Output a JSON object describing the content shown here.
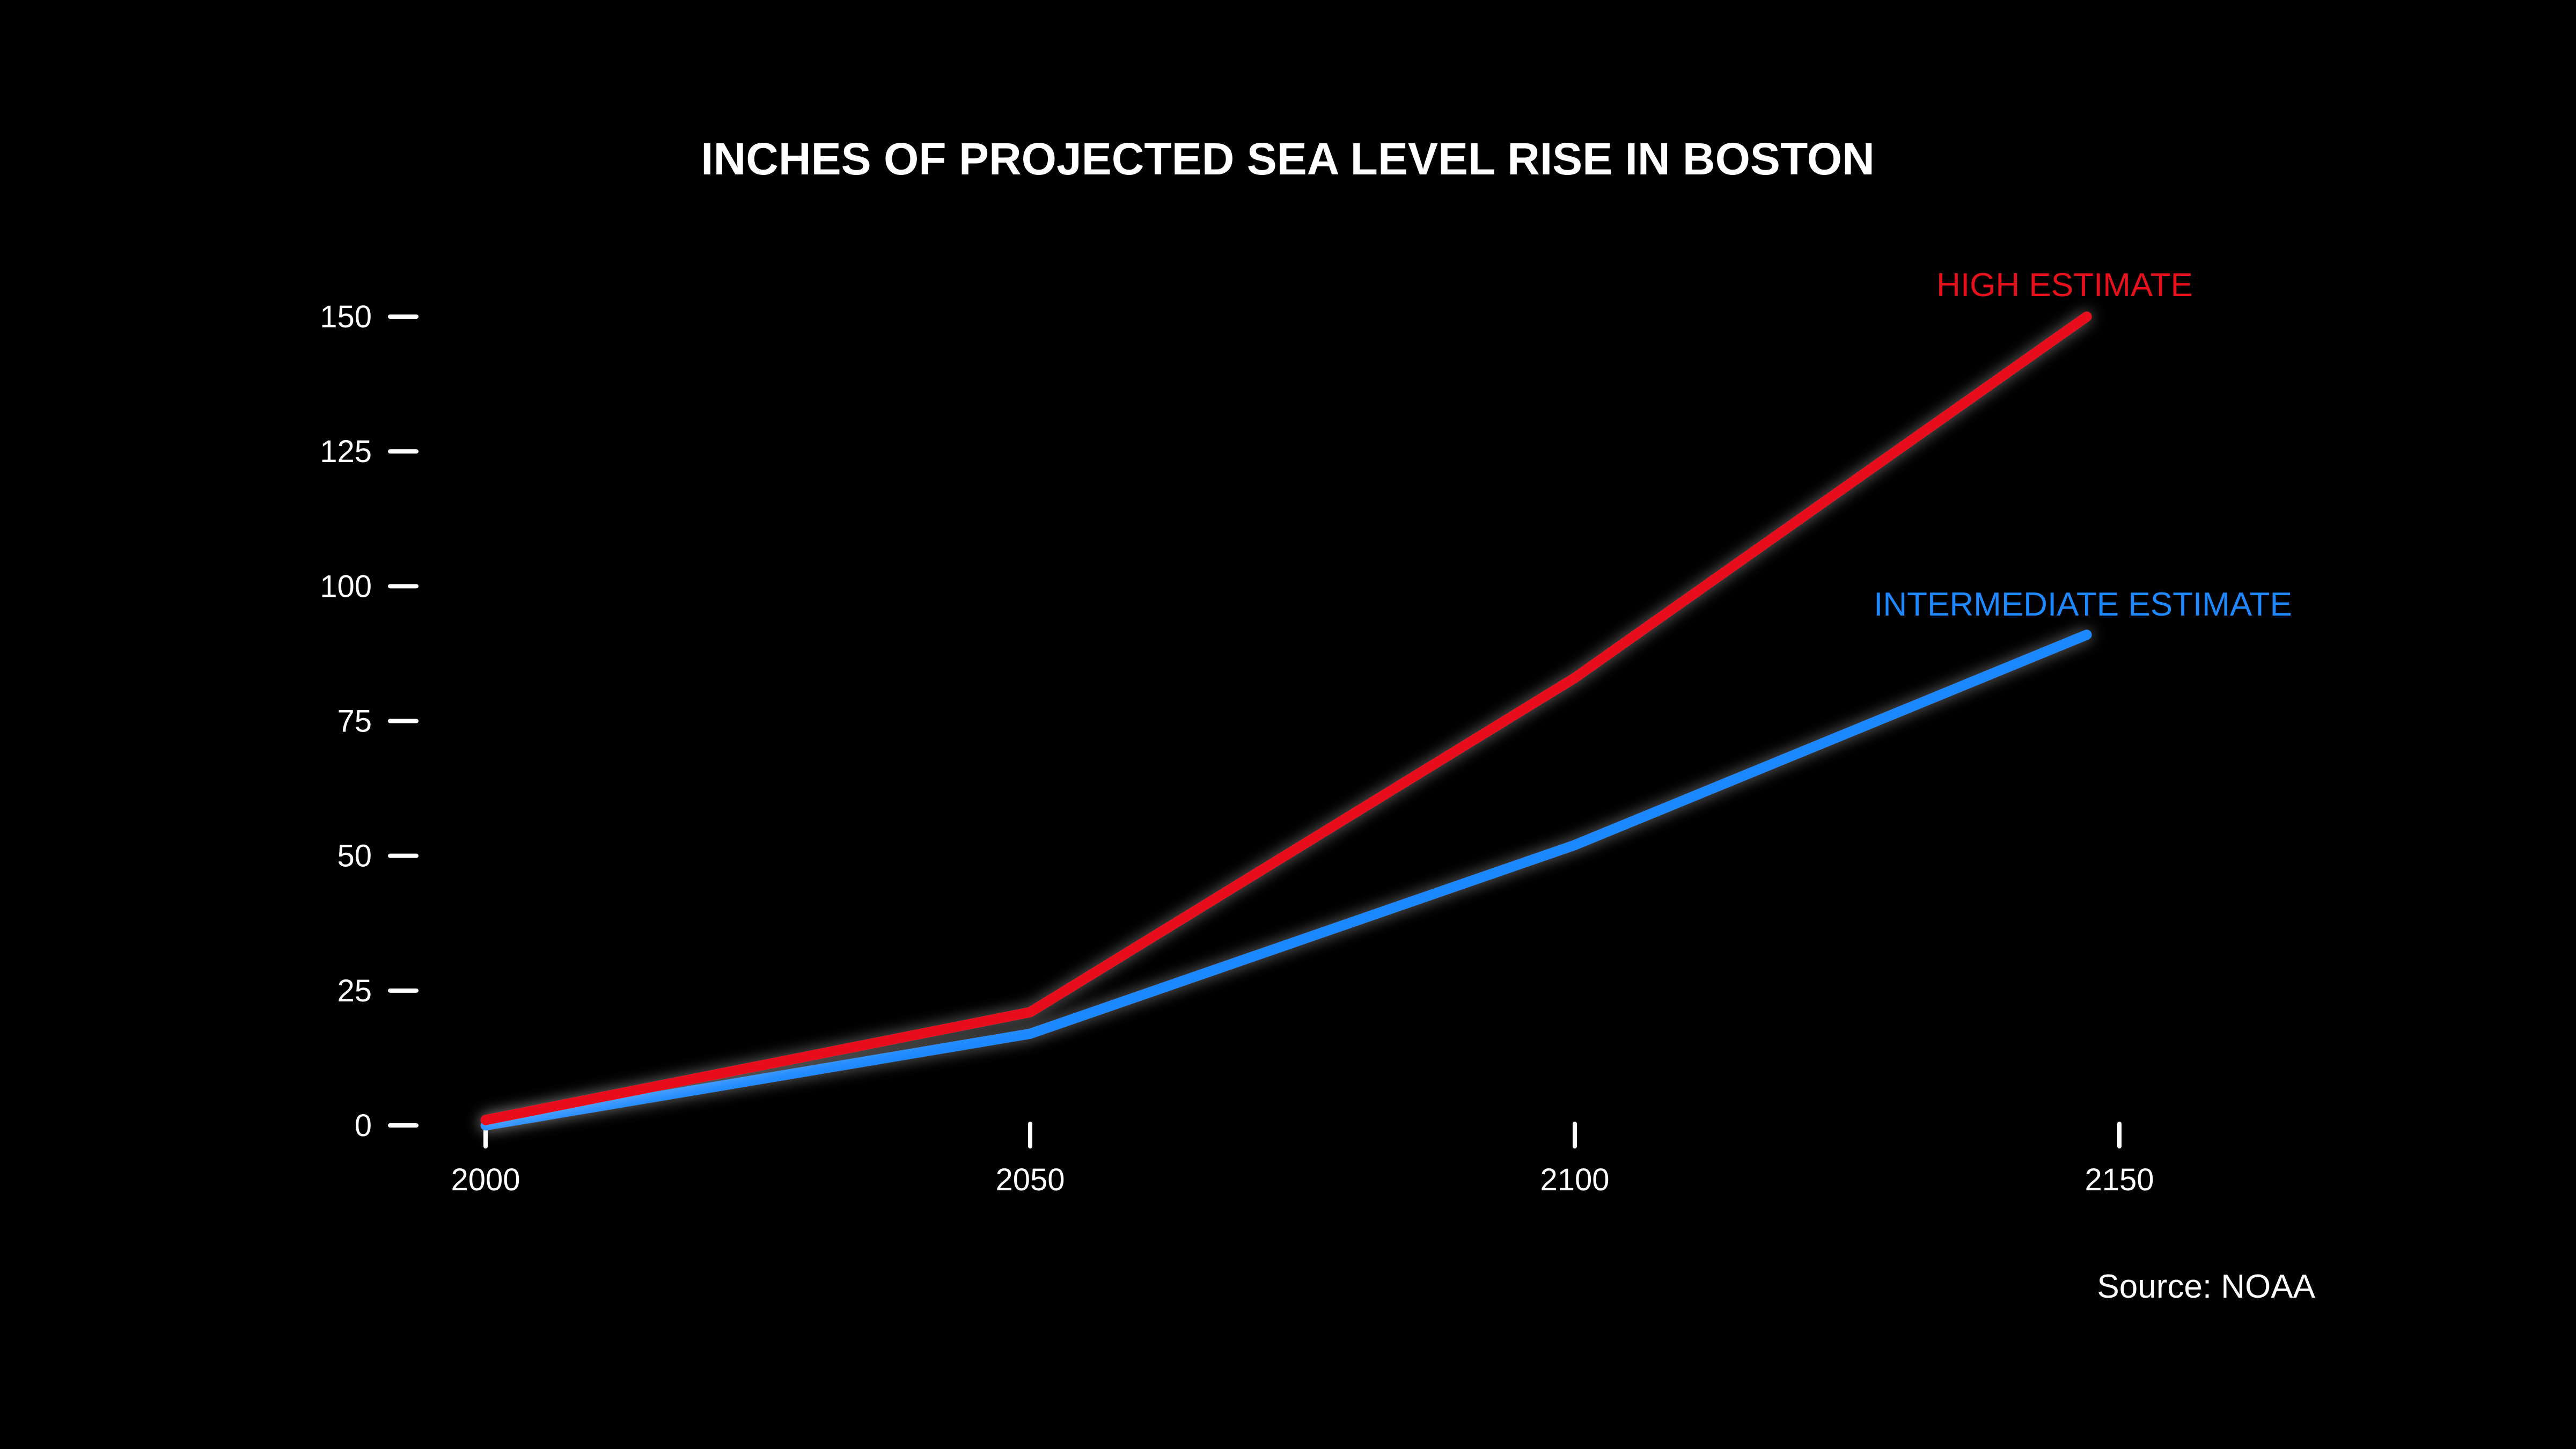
{
  "chart_data": {
    "type": "line",
    "title": "INCHES OF PROJECTED SEA LEVEL RISE IN BOSTON",
    "xlabel": "",
    "ylabel": "",
    "x": [
      2000,
      2050,
      2100,
      2150
    ],
    "x_ticks": [
      "2000",
      "2050",
      "2100",
      "2150"
    ],
    "y_ticks": [
      "0",
      "25",
      "50",
      "75",
      "100",
      "125",
      "150"
    ],
    "ylim": [
      0,
      150
    ],
    "xlim": [
      2000,
      2150
    ],
    "grid": false,
    "series": [
      {
        "name": "HIGH ESTIMATE",
        "color": "#e8101a",
        "x": [
          2000,
          2050,
          2100,
          2147
        ],
        "values": [
          1,
          21,
          83,
          150
        ]
      },
      {
        "name": "INTERMEDIATE ESTIMATE",
        "color": "#1e88ff",
        "x": [
          2000,
          2050,
          2100,
          2147
        ],
        "values": [
          0,
          17,
          52,
          91
        ]
      }
    ],
    "annotations": [
      "Source: NOAA"
    ]
  }
}
